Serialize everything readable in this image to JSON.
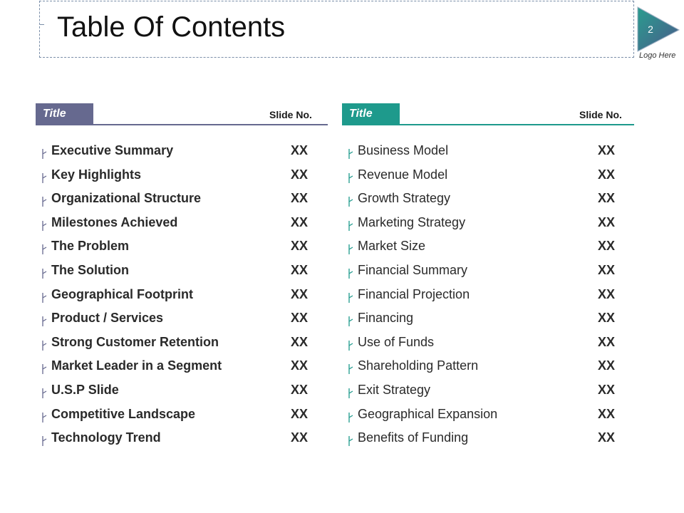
{
  "header": {
    "title": "Table Of Contents",
    "page_number": "2",
    "logo_text": "Logo Here",
    "accent_colors": {
      "left": "#66698f",
      "right": "#1e9a8c"
    }
  },
  "left_column": {
    "tab_label": "Title",
    "slide_no_label": "Slide No.",
    "items": [
      {
        "label": "Executive Summary",
        "value": "XX"
      },
      {
        "label": "Key Highlights",
        "value": "XX"
      },
      {
        "label": "Organizational Structure",
        "value": "XX"
      },
      {
        "label": "Milestones Achieved",
        "value": "XX"
      },
      {
        "label": "The Problem",
        "value": "XX"
      },
      {
        "label": "The Solution",
        "value": "XX"
      },
      {
        "label": "Geographical Footprint",
        "value": "XX"
      },
      {
        "label": "Product / Services",
        "value": "XX"
      },
      {
        "label": "Strong Customer Retention",
        "value": "XX"
      },
      {
        "label": "Market Leader in a Segment",
        "value": "XX"
      },
      {
        "label": "U.S.P Slide",
        "value": "XX"
      },
      {
        "label": "Competitive Landscape",
        "value": "XX"
      },
      {
        "label": "Technology Trend",
        "value": "XX"
      }
    ]
  },
  "right_column": {
    "tab_label": "Title",
    "slide_no_label": "Slide No.",
    "items": [
      {
        "label": "Business Model",
        "value": "XX"
      },
      {
        "label": "Revenue Model",
        "value": "XX"
      },
      {
        "label": "Growth Strategy",
        "value": "XX"
      },
      {
        "label": "Marketing Strategy",
        "value": "XX"
      },
      {
        "label": "Market Size",
        "value": "XX"
      },
      {
        "label": "Financial Summary",
        "value": "XX"
      },
      {
        "label": "Financial Projection",
        "value": "XX"
      },
      {
        "label": "Financing",
        "value": "XX"
      },
      {
        "label": "Use of Funds",
        "value": "XX"
      },
      {
        "label": "Shareholding Pattern",
        "value": "XX"
      },
      {
        "label": "Exit Strategy",
        "value": "XX"
      },
      {
        "label": "Geographical Expansion",
        "value": "XX"
      },
      {
        "label": "Benefits of Funding",
        "value": "XX"
      }
    ]
  }
}
